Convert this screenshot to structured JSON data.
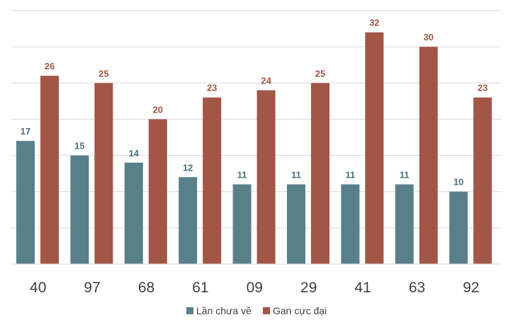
{
  "chart_data": {
    "type": "bar",
    "title": "",
    "xlabel": "",
    "ylabel": "",
    "ylim": [
      0,
      35
    ],
    "grid": true,
    "legend_position": "bottom",
    "categories": [
      "40",
      "97",
      "68",
      "61",
      "09",
      "29",
      "41",
      "63",
      "92"
    ],
    "series": [
      {
        "name": "Lần chưa về",
        "color": "#58808A",
        "label_color": "#4A6F7A",
        "values": [
          17,
          15,
          14,
          12,
          11,
          11,
          11,
          11,
          10
        ]
      },
      {
        "name": "Gan cực đại",
        "color": "#A15646",
        "label_color": "#A15646",
        "values": [
          26,
          25,
          20,
          23,
          24,
          25,
          32,
          30,
          23
        ]
      }
    ]
  }
}
